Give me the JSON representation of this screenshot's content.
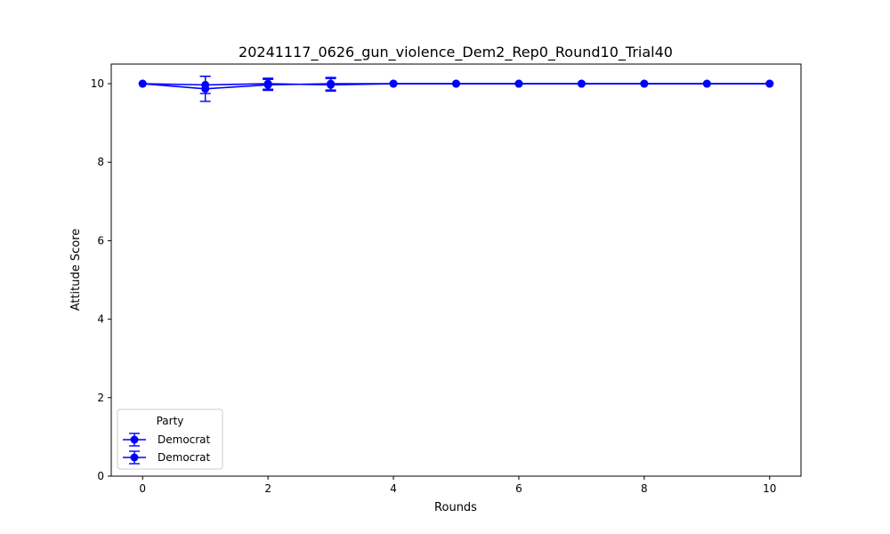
{
  "chart_data": {
    "type": "line",
    "title": "20241117_0626_gun_violence_Dem2_Rep0_Round10_Trial40",
    "xlabel": "Rounds",
    "ylabel": "Attitude Score",
    "xlim": [
      -0.5,
      10.5
    ],
    "ylim": [
      0,
      10.5
    ],
    "xticks": [
      0,
      2,
      4,
      6,
      8,
      10
    ],
    "yticks": [
      0,
      2,
      4,
      6,
      8,
      10
    ],
    "grid": false,
    "legend": {
      "title": "Party",
      "placement": "lower-left"
    },
    "series": [
      {
        "name": "Democrat",
        "color": "#0000ff",
        "x": [
          0,
          1,
          2,
          3,
          4,
          5,
          6,
          7,
          8,
          9,
          10
        ],
        "values": [
          10,
          9.97,
          10,
          9.97,
          10,
          10,
          10,
          10,
          10,
          10,
          10
        ],
        "error": [
          0,
          0.22,
          0.14,
          0.16,
          0,
          0,
          0,
          0,
          0,
          0,
          0
        ]
      },
      {
        "name": "Democrat",
        "color": "#0000ff",
        "x": [
          0,
          1,
          2,
          3,
          4,
          5,
          6,
          7,
          8,
          9,
          10
        ],
        "values": [
          10,
          9.87,
          9.97,
          10,
          10,
          10,
          10,
          10,
          10,
          10,
          10
        ],
        "error": [
          0,
          0.32,
          0.14,
          0.16,
          0,
          0,
          0,
          0,
          0,
          0,
          0
        ]
      }
    ]
  }
}
